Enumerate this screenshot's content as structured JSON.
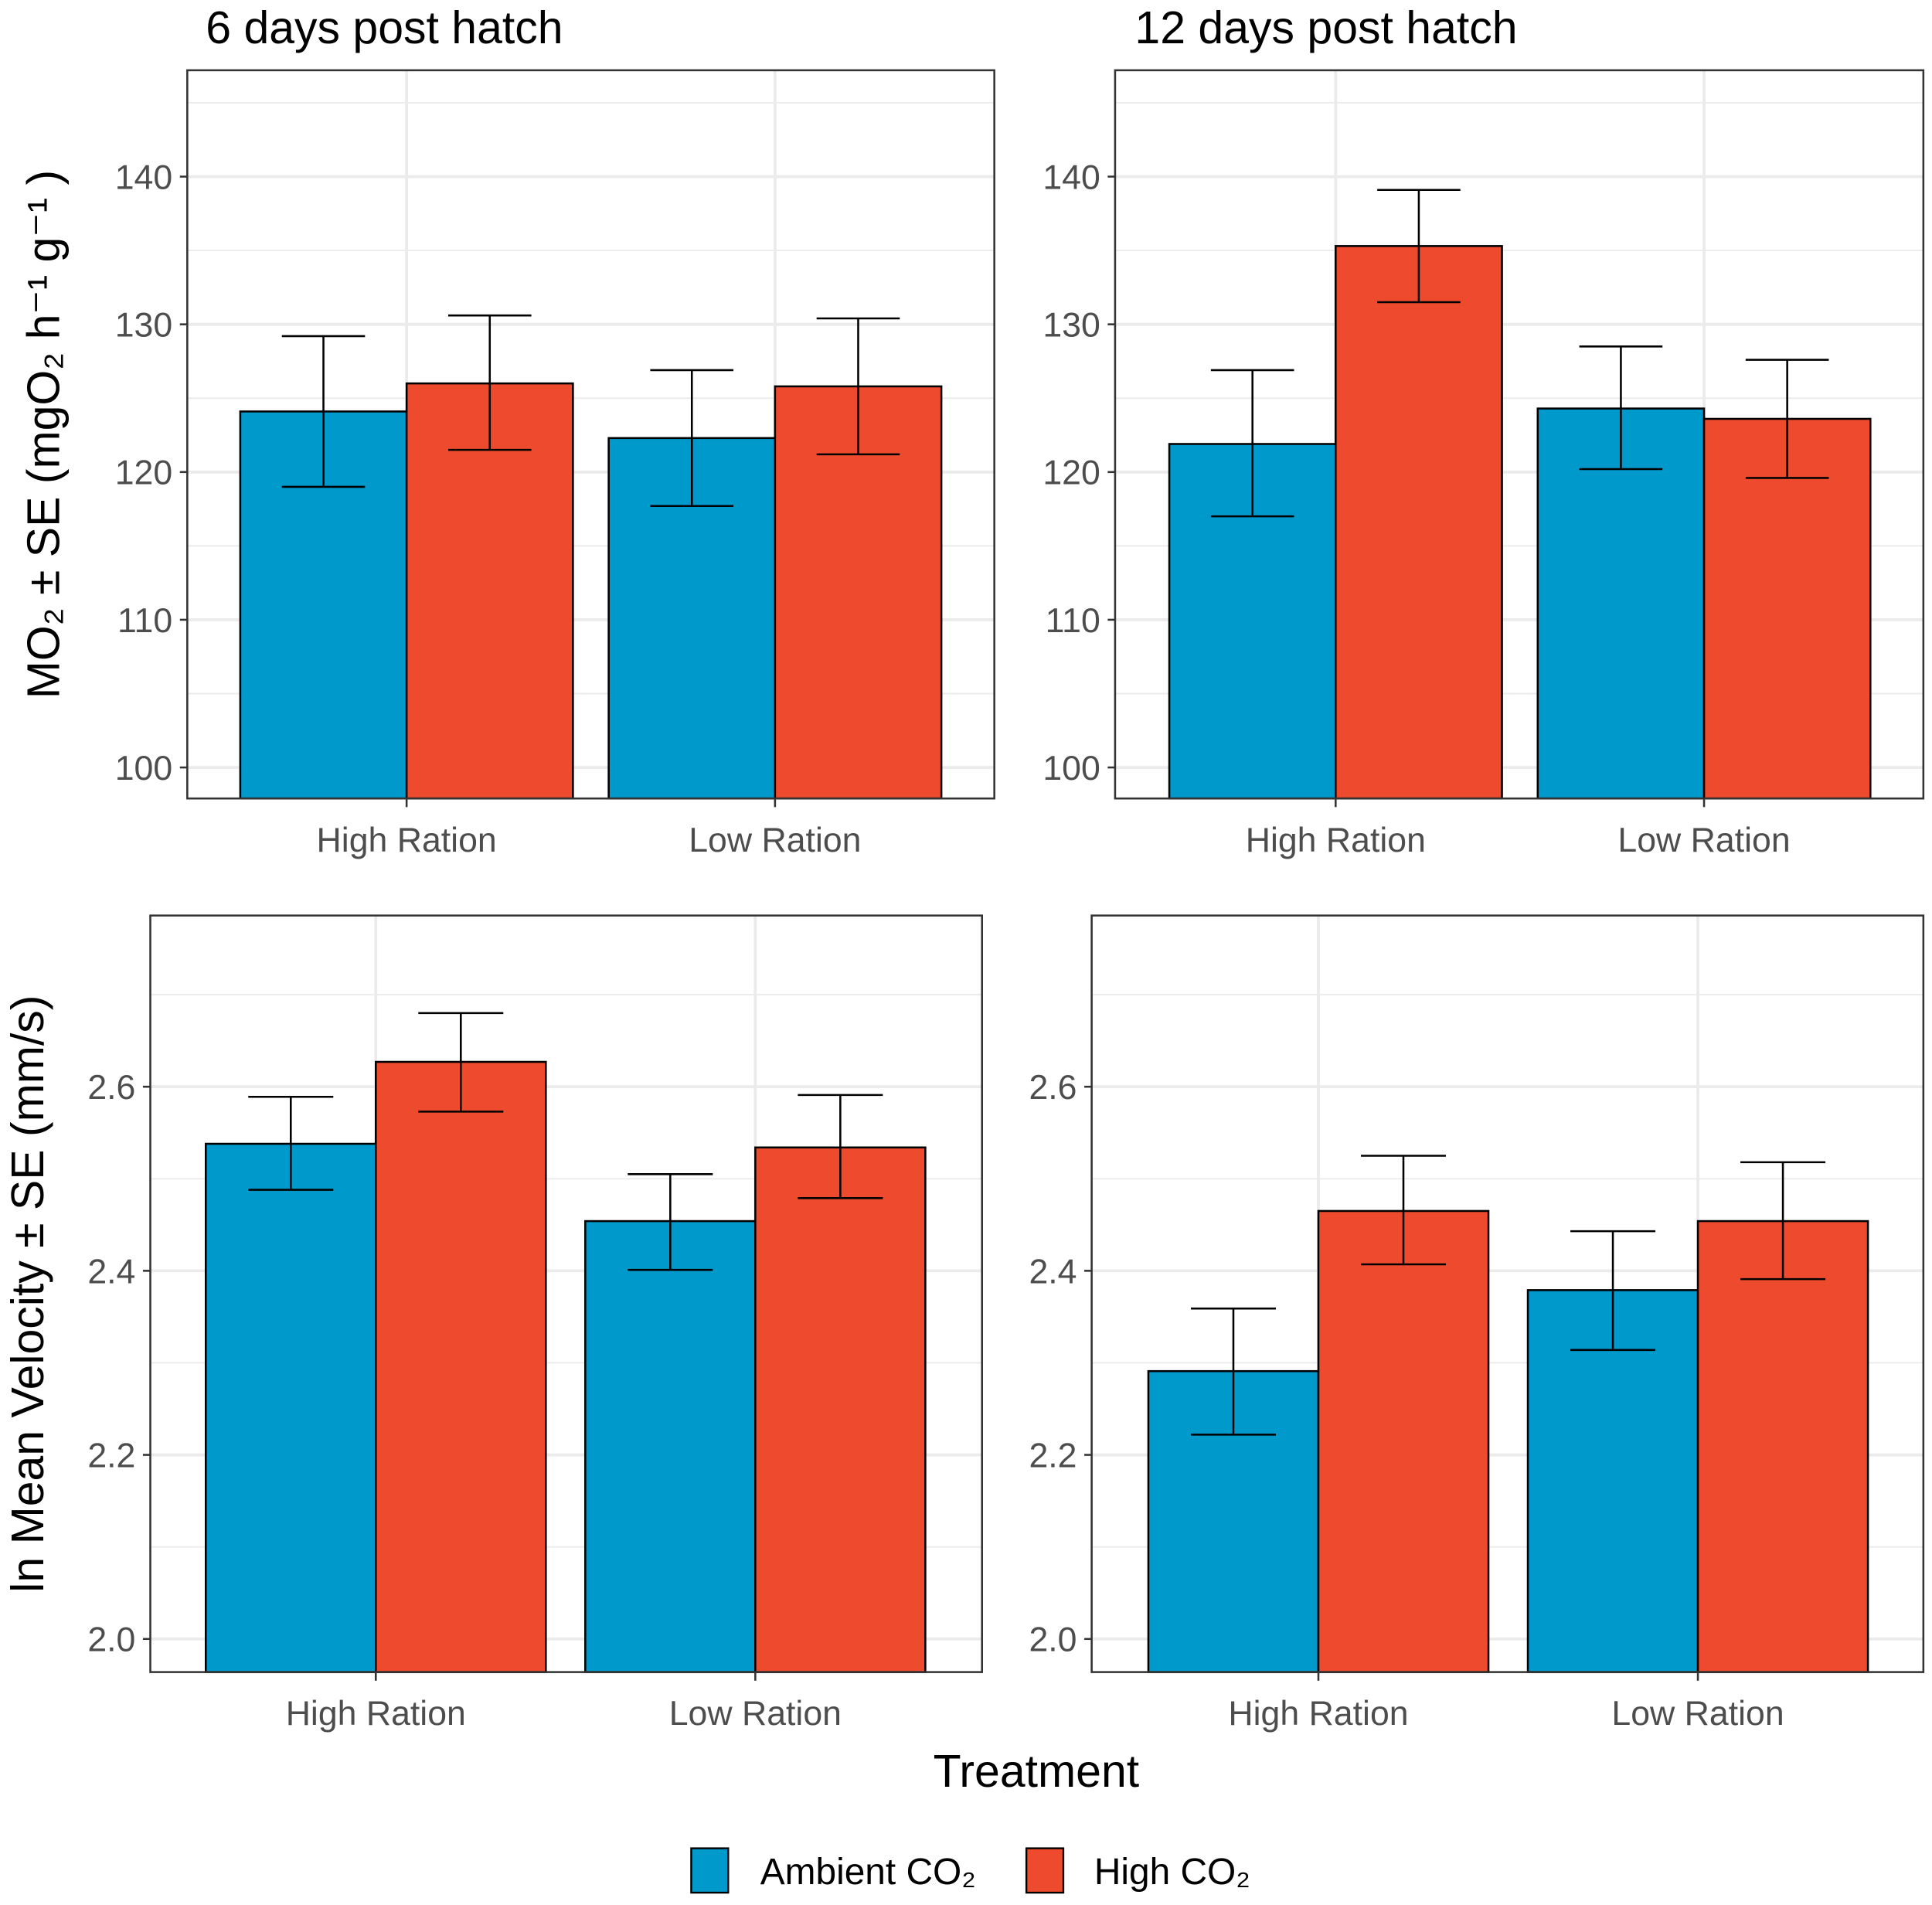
{
  "colors": {
    "Ambient CO₂": "#0099CC",
    "High CO₂": "#EE4B2E",
    "grid": "#EBEBEB",
    "border": "#333333"
  },
  "x_axis_title": "Treatment",
  "legend": {
    "items": [
      "Ambient CO₂",
      "High CO₂"
    ],
    "placement": "bottom"
  },
  "chart_data": [
    {
      "type": "bar",
      "panel": "top-left",
      "title": "6 days post hatch",
      "ylabel": "MO₂ ± SE (mgO₂ h⁻¹ g⁻¹ )",
      "ylim": [
        97.9,
        147.2
      ],
      "yticks": [
        100,
        110,
        120,
        130,
        140
      ],
      "yticklabels": [
        "100",
        "110",
        "120",
        "130",
        "140"
      ],
      "categories": [
        "High Ration",
        "Low Ration"
      ],
      "series": [
        {
          "name": "Ambient CO₂",
          "values": [
            124.1,
            122.3
          ],
          "se_low": [
            119.0,
            117.7
          ],
          "se_high": [
            129.2,
            126.9
          ]
        },
        {
          "name": "High CO₂",
          "values": [
            126.0,
            125.8
          ],
          "se_low": [
            121.5,
            121.2
          ],
          "se_high": [
            130.6,
            130.4
          ]
        }
      ]
    },
    {
      "type": "bar",
      "panel": "top-right",
      "title": "12 days post hatch",
      "ylabel": "",
      "ylim": [
        97.9,
        147.2
      ],
      "yticks": [
        100,
        110,
        120,
        130,
        140
      ],
      "yticklabels": [
        "100",
        "110",
        "120",
        "130",
        "140"
      ],
      "categories": [
        "High Ration",
        "Low Ration"
      ],
      "series": [
        {
          "name": "Ambient CO₂",
          "values": [
            121.9,
            124.3
          ],
          "se_low": [
            117.0,
            120.2
          ],
          "se_high": [
            126.9,
            128.5
          ]
        },
        {
          "name": "High CO₂",
          "values": [
            135.3,
            123.6
          ],
          "se_low": [
            131.5,
            119.6
          ],
          "se_high": [
            139.1,
            127.6
          ]
        }
      ]
    },
    {
      "type": "bar",
      "panel": "bottom-left",
      "title": "",
      "ylabel": "ln Mean Velocity ± SE (mm/s)",
      "ylim": [
        1.964,
        2.786
      ],
      "yticks": [
        2.0,
        2.2,
        2.4,
        2.6
      ],
      "yticklabels": [
        "2.0",
        "2.2",
        "2.4",
        "2.6"
      ],
      "categories": [
        "High Ration",
        "Low Ration"
      ],
      "series": [
        {
          "name": "Ambient CO₂",
          "values": [
            2.538,
            2.454
          ],
          "se_low": [
            2.488,
            2.401
          ],
          "se_high": [
            2.589,
            2.505
          ]
        },
        {
          "name": "High CO₂",
          "values": [
            2.627,
            2.534
          ],
          "se_low": [
            2.573,
            2.479
          ],
          "se_high": [
            2.68,
            2.591
          ]
        }
      ]
    },
    {
      "type": "bar",
      "panel": "bottom-right",
      "title": "",
      "ylabel": "",
      "ylim": [
        1.964,
        2.786
      ],
      "yticks": [
        2.0,
        2.2,
        2.4,
        2.6
      ],
      "yticklabels": [
        "2.0",
        "2.2",
        "2.4",
        "2.6"
      ],
      "categories": [
        "High Ration",
        "Low Ration"
      ],
      "series": [
        {
          "name": "Ambient CO₂",
          "values": [
            2.291,
            2.379
          ],
          "se_low": [
            2.222,
            2.314
          ],
          "se_high": [
            2.359,
            2.443
          ]
        },
        {
          "name": "High CO₂",
          "values": [
            2.465,
            2.454
          ],
          "se_low": [
            2.407,
            2.391
          ],
          "se_high": [
            2.525,
            2.518
          ]
        }
      ]
    }
  ]
}
